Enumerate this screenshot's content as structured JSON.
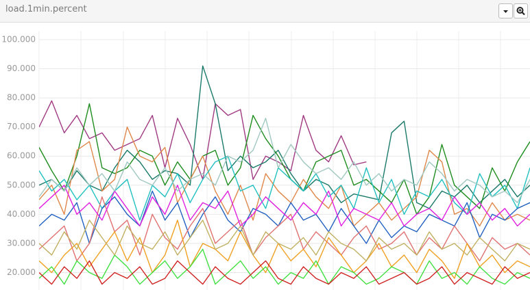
{
  "chart_data": {
    "type": "line",
    "title": "load.1min.percent",
    "ylim": [
      14,
      100
    ],
    "yticks": [
      {
        "value": 20,
        "label": "20.000"
      },
      {
        "value": 30,
        "label": "30.000"
      },
      {
        "value": 40,
        "label": "40.000"
      },
      {
        "value": 50,
        "label": "50.000"
      },
      {
        "value": 60,
        "label": "60.000"
      },
      {
        "value": 70,
        "label": "70.000"
      },
      {
        "value": 80,
        "label": "80.000"
      },
      {
        "value": 90,
        "label": "90.000"
      },
      {
        "value": 100,
        "label": "100.000"
      }
    ],
    "grid": true,
    "series": [
      {
        "color": "#a03a82",
        "values": [
          70,
          79,
          68,
          74,
          66,
          68,
          62,
          64,
          66,
          74,
          56,
          73,
          64,
          52,
          78,
          74,
          76,
          52,
          60,
          58,
          55,
          74,
          62,
          58,
          67,
          57,
          58,
          null,
          null,
          null,
          null,
          null,
          null,
          null,
          null,
          null,
          null,
          null,
          null,
          null
        ]
      },
      {
        "color": "#1a7a6a",
        "values": [
          50,
          52,
          48,
          55,
          50,
          48,
          56,
          62,
          58,
          52,
          55,
          54,
          50,
          91,
          78,
          55,
          60,
          56,
          58,
          62,
          54,
          48,
          52,
          50,
          44,
          47,
          46,
          45,
          68,
          72,
          44,
          42,
          48,
          46,
          50,
          44,
          48,
          52,
          46,
          50
        ]
      },
      {
        "color": "#1e8c1e",
        "values": [
          63,
          55,
          48,
          60,
          78,
          56,
          54,
          56,
          62,
          60,
          50,
          58,
          52,
          60,
          62,
          50,
          56,
          74,
          66,
          60,
          52,
          48,
          58,
          60,
          62,
          50,
          52,
          48,
          44,
          52,
          40,
          46,
          64,
          50,
          46,
          42,
          56,
          48,
          58,
          65
        ]
      },
      {
        "color": "#e0884a",
        "values": [
          45,
          50,
          40,
          62,
          65,
          48,
          52,
          70,
          60,
          58,
          63,
          44,
          52,
          60,
          48,
          40,
          50,
          38,
          54,
          48,
          44,
          52,
          46,
          42,
          50,
          36,
          40,
          44,
          38,
          42,
          46,
          62,
          58,
          40,
          42,
          36,
          44,
          38,
          40,
          38
        ]
      },
      {
        "color": "#20c0c0",
        "values": [
          55,
          48,
          52,
          45,
          50,
          42,
          48,
          52,
          38,
          50,
          46,
          54,
          44,
          52,
          58,
          60,
          48,
          50,
          42,
          56,
          52,
          48,
          54,
          46,
          50,
          42,
          56,
          44,
          52,
          40,
          48,
          46,
          52,
          44,
          40,
          54,
          46,
          50,
          42,
          56
        ]
      },
      {
        "color": "#2060c0",
        "values": [
          36,
          40,
          38,
          44,
          30,
          42,
          46,
          40,
          36,
          48,
          38,
          44,
          32,
          40,
          46,
          38,
          34,
          42,
          40,
          36,
          44,
          38,
          40,
          34,
          42,
          36,
          30,
          38,
          32,
          36,
          34,
          40,
          38,
          36,
          44,
          32,
          40,
          38,
          42,
          44
        ]
      },
      {
        "color": "#e07070",
        "values": [
          28,
          32,
          36,
          24,
          30,
          46,
          34,
          38,
          26,
          40,
          32,
          28,
          36,
          42,
          30,
          34,
          38,
          26,
          32,
          36,
          40,
          28,
          34,
          30,
          26,
          32,
          36,
          28,
          30,
          34,
          26,
          32,
          28,
          36,
          30,
          24,
          32,
          28,
          30,
          26
        ]
      },
      {
        "color": "#f0a020",
        "values": [
          24,
          20,
          26,
          30,
          22,
          28,
          34,
          24,
          32,
          20,
          26,
          38,
          22,
          30,
          28,
          24,
          34,
          26,
          20,
          30,
          24,
          28,
          22,
          32,
          26,
          20,
          24,
          30,
          22,
          26,
          20,
          28,
          24,
          18,
          30,
          22,
          26,
          20,
          24,
          22
        ]
      },
      {
        "color": "#40e040",
        "values": [
          18,
          22,
          16,
          24,
          20,
          18,
          26,
          22,
          16,
          20,
          24,
          18,
          22,
          28,
          16,
          20,
          24,
          18,
          22,
          16,
          20,
          18,
          24,
          16,
          22,
          20,
          16,
          18,
          22,
          20,
          16,
          24,
          18,
          20,
          16,
          22,
          18,
          16,
          20,
          18
        ]
      },
      {
        "color": "#d02020",
        "values": [
          20,
          16,
          22,
          18,
          24,
          16,
          20,
          18,
          22,
          16,
          18,
          24,
          20,
          16,
          22,
          18,
          16,
          20,
          24,
          18,
          16,
          22,
          18,
          16,
          20,
          18,
          22,
          16,
          18,
          20,
          16,
          18,
          22,
          16,
          20,
          18,
          16,
          22,
          18,
          20
        ]
      },
      {
        "color": "#e020e0",
        "values": [
          42,
          46,
          50,
          40,
          44,
          38,
          48,
          42,
          36,
          46,
          40,
          50,
          38,
          44,
          42,
          48,
          36,
          40,
          46,
          42,
          38,
          44,
          40,
          48,
          36,
          42,
          40,
          38,
          44,
          36,
          40,
          42,
          38,
          46,
          40,
          44,
          38,
          42,
          36,
          40
        ]
      },
      {
        "color": "#c0b060",
        "values": [
          30,
          26,
          34,
          28,
          38,
          32,
          26,
          36,
          30,
          28,
          34,
          26,
          32,
          38,
          28,
          30,
          36,
          26,
          34,
          30,
          28,
          32,
          26,
          34,
          30,
          28,
          24,
          32,
          28,
          30,
          26,
          34,
          28,
          30,
          26,
          32,
          28,
          24,
          30,
          28
        ]
      },
      {
        "color": "#a0c8c0",
        "values": [
          46,
          52,
          48,
          56,
          50,
          54,
          48,
          58,
          52,
          50,
          56,
          48,
          52,
          54,
          50,
          60,
          58,
          62,
          73,
          56,
          64,
          58,
          54,
          56,
          52,
          58,
          50,
          54,
          48,
          52,
          50,
          58,
          54,
          48,
          52,
          50,
          46,
          48,
          44,
          52
        ]
      }
    ]
  }
}
